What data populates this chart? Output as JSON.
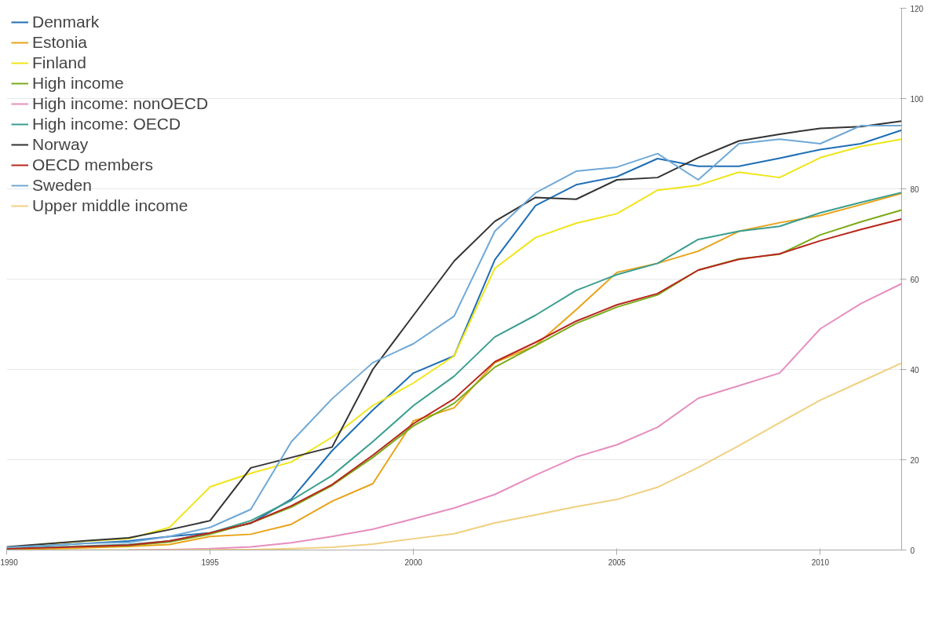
{
  "chart_data": {
    "type": "line",
    "x": [
      1990,
      1991,
      1992,
      1993,
      1994,
      1995,
      1996,
      1997,
      1998,
      1999,
      2000,
      2001,
      2002,
      2003,
      2004,
      2005,
      2006,
      2007,
      2008,
      2009,
      2010,
      2011,
      2012
    ],
    "series": [
      {
        "name": "Denmark",
        "color": "#1f6fb5",
        "values": [
          0.5,
          1,
          1.5,
          2,
          3,
          3.8,
          5.9,
          11.3,
          22,
          31,
          39.2,
          43,
          64.3,
          76.3,
          80.9,
          82.7,
          86.7,
          85,
          85,
          86.8,
          88.7,
          90,
          93
        ]
      },
      {
        "name": "Estonia",
        "color": "#e8a317",
        "values": [
          0,
          0.2,
          0.5,
          0.8,
          1.2,
          3,
          3.5,
          5.7,
          10.8,
          14.7,
          28.6,
          31.5,
          41.5,
          45.3,
          53.2,
          61.5,
          63.5,
          66.2,
          70.6,
          72.5,
          74.1,
          76.5,
          79
        ]
      },
      {
        "name": "Finland",
        "color": "#f0e518",
        "values": [
          0.4,
          1.4,
          2,
          2.5,
          5,
          14,
          17,
          19.5,
          25,
          32,
          37,
          43,
          62.4,
          69.2,
          72.4,
          74.5,
          79.7,
          80.8,
          83.7,
          82.5,
          86.9,
          89.4,
          91
        ]
      },
      {
        "name": "High income",
        "color": "#7aab1a",
        "x": [
          1992,
          1993,
          1994,
          1995,
          1996,
          1997,
          1998,
          1999,
          2000,
          2001,
          2002,
          2003,
          2004,
          2005,
          2006,
          2007,
          2008,
          2009,
          2010,
          2011,
          2012
        ],
        "values": [
          0.8,
          1,
          1.8,
          3.5,
          6,
          9.5,
          14.3,
          20.5,
          27.5,
          32.5,
          40.5,
          45.3,
          50.2,
          53.8,
          56.5,
          62,
          64.5,
          65.5,
          69.8,
          72.7,
          75.3
        ]
      },
      {
        "name": "High income: nonOECD",
        "color": "#e68ec0",
        "x": [
          1993,
          1994,
          1995,
          1996,
          1997,
          1998,
          1999,
          2000,
          2001,
          2002,
          2003,
          2004,
          2005,
          2006,
          2007,
          2008,
          2009,
          2010,
          2011,
          2012
        ],
        "values": [
          0,
          0.1,
          0.3,
          0.7,
          1.6,
          3,
          4.6,
          6.9,
          9.3,
          12.3,
          16.6,
          20.6,
          23.3,
          27.2,
          33.6,
          36.4,
          39.2,
          49,
          54.6,
          59
        ]
      },
      {
        "name": "High income: OECD",
        "color": "#3a9e8f",
        "values": [
          0.3,
          0.6,
          0.9,
          1.2,
          2,
          3.8,
          6.5,
          11,
          16.5,
          24,
          32,
          38.5,
          47.2,
          52,
          57.5,
          61,
          63.5,
          68.8,
          70.6,
          71.7,
          74.7,
          77,
          79.2
        ]
      },
      {
        "name": "Norway",
        "color": "#333333",
        "values": [
          0.7,
          1.4,
          2.1,
          2.7,
          4.5,
          6.5,
          18.2,
          20.5,
          22.8,
          40,
          52,
          64,
          72.8,
          78.1,
          77.7,
          82,
          82.5,
          86.9,
          90.6,
          92.1,
          93.4,
          93.8,
          95
        ]
      },
      {
        "name": "OECD members",
        "color": "#b8261c",
        "values": [
          0.3,
          0.5,
          0.8,
          1.1,
          2,
          3.8,
          6,
          9.8,
          14.5,
          21,
          28,
          33.5,
          41.7,
          46,
          50.7,
          54.3,
          56.8,
          62,
          64.4,
          65.6,
          68.5,
          71,
          73.3
        ]
      },
      {
        "name": "Sweden",
        "color": "#6fa8d6",
        "values": [
          0.6,
          1,
          1.5,
          1.7,
          3,
          5,
          9,
          24,
          33.5,
          41.5,
          45.7,
          51.8,
          70.6,
          79.1,
          83.9,
          84.8,
          87.8,
          82,
          90,
          91,
          90,
          94,
          94
        ]
      },
      {
        "name": "Upper middle income",
        "color": "#f0d080",
        "x": [
          1991,
          1992,
          1993,
          1994,
          1995,
          1996,
          1997,
          1998,
          1999,
          2000,
          2001,
          2002,
          2003,
          2004,
          2005,
          2006,
          2007,
          2008,
          2009,
          2010,
          2011,
          2012
        ],
        "values": [
          0,
          0,
          0,
          0,
          0.1,
          0.1,
          0.3,
          0.6,
          1.3,
          2.5,
          3.6,
          6,
          7.8,
          9.6,
          11.2,
          13.9,
          18.3,
          23.1,
          28.2,
          33.2,
          37.3,
          41.4
        ]
      }
    ],
    "xlim": [
      1990,
      2012
    ],
    "xticks": [
      1990,
      1995,
      2000,
      2005,
      2010
    ],
    "ylim": [
      0,
      120
    ],
    "yticks": [
      0,
      20,
      40,
      60,
      80,
      100,
      120
    ],
    "grid": "y",
    "legend": "top left",
    "marker": "none",
    "line_style": "solid"
  }
}
